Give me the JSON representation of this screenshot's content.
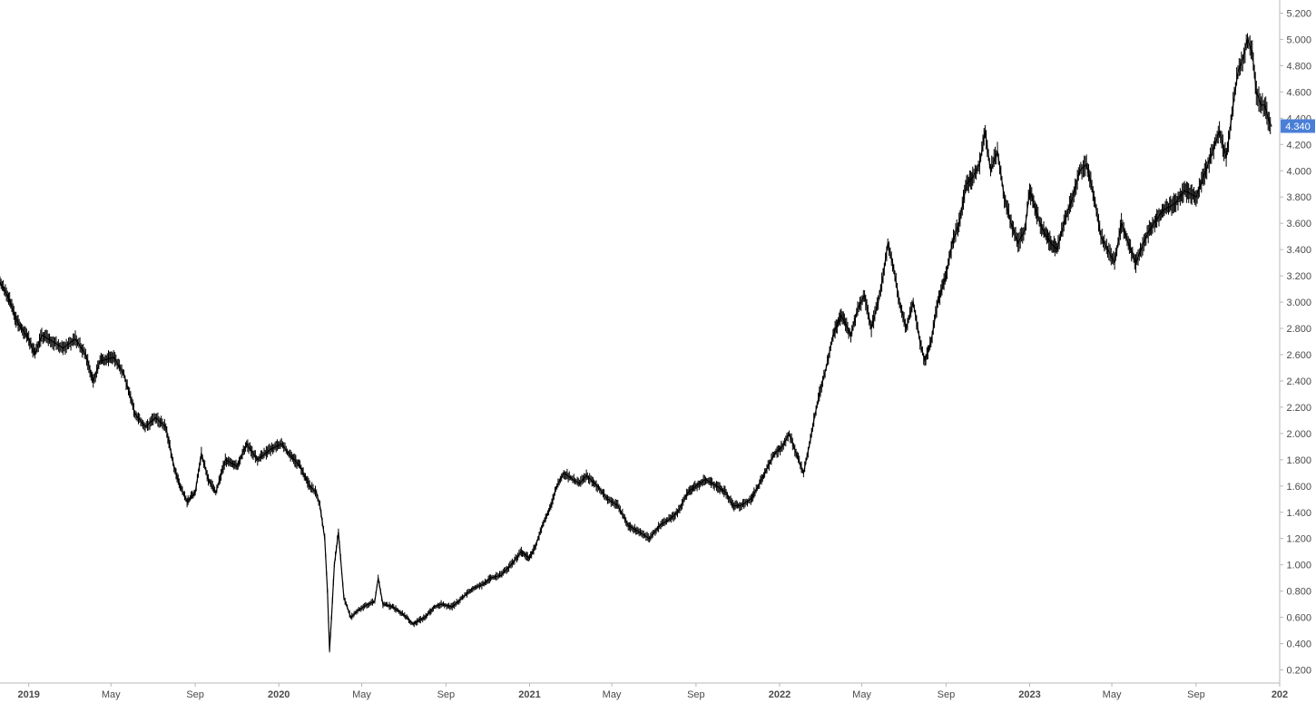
{
  "chart_data": {
    "type": "line",
    "title": "",
    "xlabel": "",
    "ylabel": "",
    "x_range": [
      "2018-11-20",
      "2024-01-01"
    ],
    "ylim": [
      0.1,
      5.3
    ],
    "grid": false,
    "last_price_label": "4.340",
    "last_price": 4.34,
    "accent_color": "#4a7fd8",
    "line_color": "#000000",
    "y_ticks": [
      {
        "value": 0.2,
        "label": "0.200"
      },
      {
        "value": 0.4,
        "label": "0.400"
      },
      {
        "value": 0.6,
        "label": "0.600"
      },
      {
        "value": 0.8,
        "label": "0.800"
      },
      {
        "value": 1.0,
        "label": "1.000"
      },
      {
        "value": 1.2,
        "label": "1.200"
      },
      {
        "value": 1.4,
        "label": "1.400"
      },
      {
        "value": 1.6,
        "label": "1.600"
      },
      {
        "value": 1.8,
        "label": "1.800"
      },
      {
        "value": 2.0,
        "label": "2.000"
      },
      {
        "value": 2.2,
        "label": "2.200"
      },
      {
        "value": 2.4,
        "label": "2.400"
      },
      {
        "value": 2.6,
        "label": "2.600"
      },
      {
        "value": 2.8,
        "label": "2.800"
      },
      {
        "value": 3.0,
        "label": "3.000"
      },
      {
        "value": 3.2,
        "label": "3.200"
      },
      {
        "value": 3.4,
        "label": "3.400"
      },
      {
        "value": 3.6,
        "label": "3.600"
      },
      {
        "value": 3.8,
        "label": "3.800"
      },
      {
        "value": 4.0,
        "label": "4.000"
      },
      {
        "value": 4.2,
        "label": "4.200"
      },
      {
        "value": 4.4,
        "label": "4.400"
      },
      {
        "value": 4.6,
        "label": "4.600"
      },
      {
        "value": 4.8,
        "label": "4.800"
      },
      {
        "value": 5.0,
        "label": "5.000"
      },
      {
        "value": 5.2,
        "label": "5.200"
      }
    ],
    "x_ticks": [
      {
        "date": "2019-01-01",
        "label": "2019",
        "bold": true
      },
      {
        "date": "2019-05-01",
        "label": "May",
        "bold": false
      },
      {
        "date": "2019-09-01",
        "label": "Sep",
        "bold": false
      },
      {
        "date": "2020-01-01",
        "label": "2020",
        "bold": true
      },
      {
        "date": "2020-05-01",
        "label": "May",
        "bold": false
      },
      {
        "date": "2020-09-01",
        "label": "Sep",
        "bold": false
      },
      {
        "date": "2021-01-01",
        "label": "2021",
        "bold": true
      },
      {
        "date": "2021-05-01",
        "label": "May",
        "bold": false
      },
      {
        "date": "2021-09-01",
        "label": "Sep",
        "bold": false
      },
      {
        "date": "2022-01-01",
        "label": "2022",
        "bold": true
      },
      {
        "date": "2022-05-01",
        "label": "May",
        "bold": false
      },
      {
        "date": "2022-09-01",
        "label": "Sep",
        "bold": false
      },
      {
        "date": "2023-01-01",
        "label": "2023",
        "bold": true
      },
      {
        "date": "2023-05-01",
        "label": "May",
        "bold": false
      },
      {
        "date": "2023-09-01",
        "label": "Sep",
        "bold": false
      },
      {
        "date": "2024-01-01",
        "label": "202",
        "bold": true
      }
    ],
    "series": [
      {
        "x": [
          "2018-11-20",
          "2018-12-01",
          "2018-12-15",
          "2019-01-01",
          "2019-01-10",
          "2019-01-20",
          "2019-02-05",
          "2019-02-20",
          "2019-03-10",
          "2019-03-25",
          "2019-04-05",
          "2019-04-15",
          "2019-05-05",
          "2019-05-20",
          "2019-06-05",
          "2019-06-20",
          "2019-07-05",
          "2019-07-20",
          "2019-08-01",
          "2019-08-10",
          "2019-08-20",
          "2019-09-01",
          "2019-09-10",
          "2019-09-20",
          "2019-10-01",
          "2019-10-15",
          "2019-11-01",
          "2019-11-15",
          "2019-12-01",
          "2019-12-20",
          "2020-01-05",
          "2020-01-15",
          "2020-02-01",
          "2020-02-15",
          "2020-02-25",
          "2020-03-01",
          "2020-03-08",
          "2020-03-12",
          "2020-03-15",
          "2020-03-18",
          "2020-03-22",
          "2020-03-28",
          "2020-04-05",
          "2020-04-15",
          "2020-04-25",
          "2020-05-10",
          "2020-05-20",
          "2020-05-25",
          "2020-06-01",
          "2020-06-15",
          "2020-07-01",
          "2020-07-15",
          "2020-08-01",
          "2020-08-15",
          "2020-08-25",
          "2020-09-10",
          "2020-09-25",
          "2020-10-10",
          "2020-10-25",
          "2020-11-05",
          "2020-11-20",
          "2020-12-05",
          "2020-12-20",
          "2021-01-01",
          "2021-01-10",
          "2021-01-20",
          "2021-02-01",
          "2021-02-10",
          "2021-02-20",
          "2021-03-05",
          "2021-03-15",
          "2021-03-25",
          "2021-04-10",
          "2021-04-25",
          "2021-05-10",
          "2021-05-25",
          "2021-06-10",
          "2021-06-25",
          "2021-07-10",
          "2021-07-25",
          "2021-08-05",
          "2021-08-20",
          "2021-09-01",
          "2021-09-15",
          "2021-10-01",
          "2021-10-15",
          "2021-10-25",
          "2021-11-05",
          "2021-11-20",
          "2021-12-01",
          "2021-12-15",
          "2021-12-25",
          "2022-01-05",
          "2022-01-15",
          "2022-01-25",
          "2022-02-05",
          "2022-02-15",
          "2022-02-20",
          "2022-02-28",
          "2022-03-10",
          "2022-03-20",
          "2022-04-01",
          "2022-04-15",
          "2022-04-25",
          "2022-05-05",
          "2022-05-15",
          "2022-05-25",
          "2022-06-01",
          "2022-06-08",
          "2022-06-15",
          "2022-06-25",
          "2022-07-05",
          "2022-07-15",
          "2022-07-25",
          "2022-08-01",
          "2022-08-10",
          "2022-08-20",
          "2022-09-01",
          "2022-09-10",
          "2022-09-20",
          "2022-10-01",
          "2022-10-10",
          "2022-10-20",
          "2022-10-28",
          "2022-11-05",
          "2022-11-15",
          "2022-11-25",
          "2022-12-05",
          "2022-12-15",
          "2022-12-25",
          "2023-01-01",
          "2023-01-10",
          "2023-01-20",
          "2023-02-01",
          "2023-02-10",
          "2023-02-20",
          "2023-03-05",
          "2023-03-15",
          "2023-03-25",
          "2023-04-05",
          "2023-04-15",
          "2023-04-25",
          "2023-05-05",
          "2023-05-15",
          "2023-05-25",
          "2023-06-05",
          "2023-06-20",
          "2023-07-01",
          "2023-07-15",
          "2023-08-01",
          "2023-08-15",
          "2023-09-01",
          "2023-09-15",
          "2023-09-25",
          "2023-10-05",
          "2023-10-15",
          "2023-10-25",
          "2023-11-01",
          "2023-11-08",
          "2023-11-15",
          "2023-11-22",
          "2023-11-28",
          "2023-12-05",
          "2023-12-10",
          "2023-12-15",
          "2023-12-20"
        ],
        "values": [
          3.15,
          3.05,
          2.85,
          2.72,
          2.6,
          2.75,
          2.7,
          2.65,
          2.72,
          2.6,
          2.4,
          2.55,
          2.58,
          2.45,
          2.15,
          2.05,
          2.12,
          2.05,
          1.75,
          1.6,
          1.48,
          1.55,
          1.85,
          1.65,
          1.55,
          1.8,
          1.75,
          1.92,
          1.8,
          1.88,
          1.92,
          1.85,
          1.75,
          1.6,
          1.55,
          1.45,
          1.2,
          0.8,
          0.35,
          0.6,
          1.0,
          1.25,
          0.75,
          0.6,
          0.65,
          0.7,
          0.72,
          0.9,
          0.7,
          0.68,
          0.62,
          0.55,
          0.6,
          0.68,
          0.7,
          0.68,
          0.75,
          0.82,
          0.85,
          0.9,
          0.92,
          1.0,
          1.1,
          1.05,
          1.15,
          1.3,
          1.45,
          1.6,
          1.7,
          1.65,
          1.62,
          1.68,
          1.6,
          1.5,
          1.45,
          1.3,
          1.25,
          1.2,
          1.3,
          1.35,
          1.4,
          1.55,
          1.6,
          1.65,
          1.6,
          1.55,
          1.45,
          1.45,
          1.5,
          1.6,
          1.75,
          1.85,
          1.9,
          2.0,
          1.85,
          1.7,
          1.95,
          2.1,
          2.3,
          2.5,
          2.75,
          2.9,
          2.75,
          2.95,
          3.05,
          2.8,
          3.0,
          3.2,
          3.45,
          3.3,
          3.0,
          2.8,
          3.0,
          2.7,
          2.55,
          2.7,
          3.0,
          3.2,
          3.45,
          3.6,
          3.9,
          3.95,
          4.05,
          4.3,
          4.0,
          4.15,
          3.8,
          3.6,
          3.45,
          3.55,
          3.85,
          3.7,
          3.55,
          3.45,
          3.4,
          3.6,
          3.8,
          4.0,
          4.05,
          3.8,
          3.5,
          3.4,
          3.3,
          3.6,
          3.45,
          3.3,
          3.5,
          3.6,
          3.7,
          3.75,
          3.85,
          3.8,
          4.0,
          4.15,
          4.3,
          4.1,
          4.5,
          4.75,
          4.85,
          5.0,
          4.9,
          4.6,
          4.5,
          4.5,
          4.4,
          4.34
        ]
      }
    ]
  }
}
